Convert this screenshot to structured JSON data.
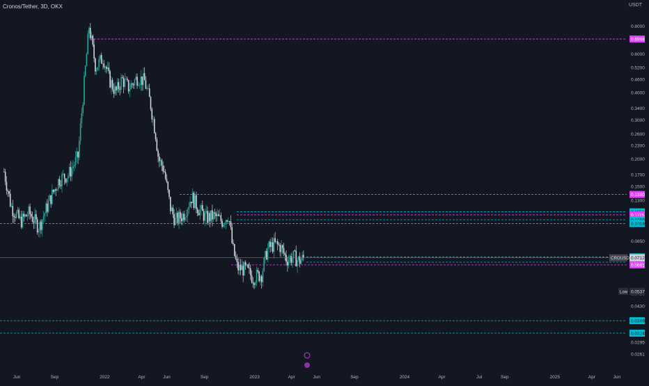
{
  "header": {
    "title": "Cronos/Tether, 3D, OKX",
    "currency": "USDT"
  },
  "colors": {
    "background": "#131722",
    "up": "#26a69a",
    "down": "#d1d4dc",
    "cyan_line": "#00bcd4",
    "magenta_line": "#e040fb",
    "axis_text": "#b2b5be"
  },
  "chart_data": {
    "type": "candlestick",
    "symbol": "CROUSDT",
    "interval": "3D",
    "exchange": "OKX",
    "y_scale": "log",
    "ylim": [
      0.0255,
      0.95
    ],
    "y_ticks": [
      "0.8000",
      "0.6000",
      "0.5200",
      "0.4600",
      "0.4000",
      "0.3400",
      "0.3000",
      "0.2600",
      "0.2300",
      "0.2000",
      "0.1700",
      "0.1500",
      "0.1300",
      "0.0850",
      "0.0490",
      "0.0430",
      "0.0295",
      "0.0261"
    ],
    "x_ticks": [
      "Jun",
      "Sep",
      "2022",
      "Apr",
      "Jun",
      "Sep",
      "2023",
      "Apr",
      "Jun",
      "Sep",
      "2024",
      "Apr",
      "Jul",
      "Sep",
      "2025",
      "Apr",
      "Jun"
    ],
    "price_path": [
      {
        "date": "2021-05-01",
        "price": 0.175
      },
      {
        "date": "2021-05-18",
        "price": 0.122
      },
      {
        "date": "2021-06-10",
        "price": 0.104
      },
      {
        "date": "2021-07-01",
        "price": 0.114
      },
      {
        "date": "2021-07-25",
        "price": 0.098
      },
      {
        "date": "2021-08-20",
        "price": 0.13
      },
      {
        "date": "2021-09-12",
        "price": 0.162
      },
      {
        "date": "2021-10-05",
        "price": 0.17
      },
      {
        "date": "2021-10-28",
        "price": 0.205
      },
      {
        "date": "2021-11-10",
        "price": 0.4
      },
      {
        "date": "2021-11-24",
        "price": 0.8
      },
      {
        "date": "2021-12-10",
        "price": 0.52
      },
      {
        "date": "2021-12-28",
        "price": 0.58
      },
      {
        "date": "2022-01-12",
        "price": 0.46
      },
      {
        "date": "2022-01-28",
        "price": 0.4
      },
      {
        "date": "2022-02-12",
        "price": 0.46
      },
      {
        "date": "2022-03-01",
        "price": 0.42
      },
      {
        "date": "2022-03-22",
        "price": 0.47
      },
      {
        "date": "2022-04-08",
        "price": 0.45
      },
      {
        "date": "2022-04-22",
        "price": 0.36
      },
      {
        "date": "2022-05-05",
        "price": 0.26
      },
      {
        "date": "2022-05-12",
        "price": 0.2
      },
      {
        "date": "2022-05-25",
        "price": 0.18
      },
      {
        "date": "2022-06-10",
        "price": 0.12
      },
      {
        "date": "2022-06-22",
        "price": 0.105
      },
      {
        "date": "2022-07-12",
        "price": 0.112
      },
      {
        "date": "2022-08-01",
        "price": 0.135
      },
      {
        "date": "2022-08-16",
        "price": 0.12
      },
      {
        "date": "2022-09-05",
        "price": 0.108
      },
      {
        "date": "2022-09-25",
        "price": 0.11
      },
      {
        "date": "2022-10-15",
        "price": 0.104
      },
      {
        "date": "2022-10-30",
        "price": 0.112
      },
      {
        "date": "2022-11-08",
        "price": 0.08
      },
      {
        "date": "2022-11-20",
        "price": 0.064
      },
      {
        "date": "2022-12-10",
        "price": 0.063
      },
      {
        "date": "2022-12-28",
        "price": 0.058
      },
      {
        "date": "2023-01-18",
        "price": 0.06
      },
      {
        "date": "2023-02-01",
        "price": 0.078
      },
      {
        "date": "2023-02-18",
        "price": 0.082
      },
      {
        "date": "2023-03-05",
        "price": 0.08
      },
      {
        "date": "2023-03-20",
        "price": 0.07
      },
      {
        "date": "2023-04-05",
        "price": 0.072
      },
      {
        "date": "2023-04-20",
        "price": 0.069
      },
      {
        "date": "2023-05-01",
        "price": 0.0712
      }
    ],
    "horizontal_levels": [
      {
        "price": 0.6998,
        "label": "0.6998",
        "color": "magenta",
        "style": "dashed"
      },
      {
        "price": 0.138,
        "label": "0.1380",
        "color": "magenta",
        "style": "dashed"
      },
      {
        "price": 0.1151,
        "label": "0.1151",
        "color": "cyan",
        "style": "dashed"
      },
      {
        "price": 0.1115,
        "label": "0.1115",
        "color": "magenta",
        "style": "dashed"
      },
      {
        "price": 0.1059,
        "label": "0.1059",
        "color": "cyan",
        "style": "dashed"
      },
      {
        "price": 0.1018,
        "label": "0.1018",
        "color": "cyan",
        "style": "dashed"
      },
      {
        "price": 0.0719,
        "label": "0.0719",
        "color": "cyan",
        "style": "dashed"
      },
      {
        "price": 0.068,
        "label": "0.0680",
        "color": "cyan",
        "style": "dashed"
      },
      {
        "price": 0.0661,
        "label": "0.0661",
        "color": "magenta",
        "style": "dashed"
      },
      {
        "price": 0.0369,
        "label": "0.0369",
        "color": "cyan",
        "style": "dashed"
      },
      {
        "price": 0.0324,
        "label": "0.0324",
        "color": "cyan",
        "style": "dashed"
      }
    ],
    "current_price": {
      "value": 0.0712,
      "label": "0.0712",
      "symbol": "CROUSDT",
      "countdown": "0:01:41"
    },
    "low_marker": {
      "label": "Low",
      "value": "0.0537"
    }
  }
}
